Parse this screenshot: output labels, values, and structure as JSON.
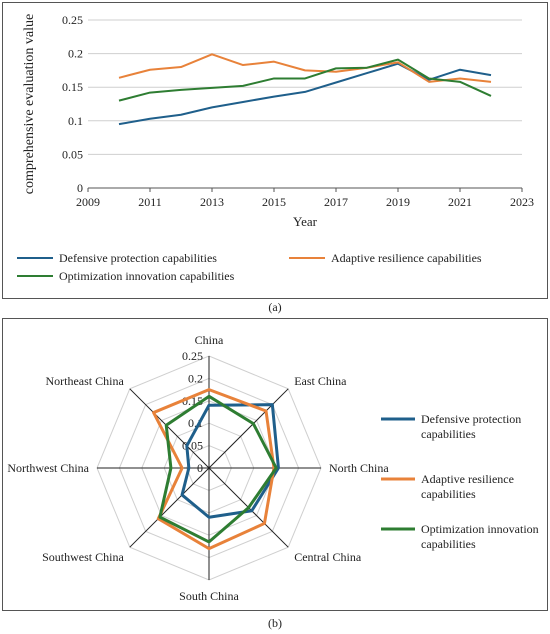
{
  "colors": {
    "defensive": "#1f5f8b",
    "adaptive": "#e8823a",
    "optimization": "#2e7d32",
    "grid": "#cfcfcf",
    "axis": "#555555"
  },
  "caption_a": "(a)",
  "caption_b": "(b)",
  "chart_data": [
    {
      "type": "line",
      "title": "",
      "xlabel": "Year",
      "ylabel": "comprehensive evaluation value",
      "xlim": [
        2009,
        2023
      ],
      "ylim": [
        0,
        0.25
      ],
      "xticks": [
        2009,
        2011,
        2013,
        2015,
        2017,
        2019,
        2021,
        2023
      ],
      "yticks": [
        0,
        0.05,
        0.1,
        0.15,
        0.2,
        0.25
      ],
      "ytick_labels": [
        "0",
        "0.05",
        "0.1",
        "0.15",
        "0.2",
        "0.25"
      ],
      "grid": "horizontal",
      "legend": "bottom",
      "x": [
        2010,
        2011,
        2012,
        2013,
        2014,
        2015,
        2016,
        2017,
        2018,
        2019,
        2020,
        2021,
        2022
      ],
      "series": [
        {
          "name": "Defensive protection capabilities",
          "color_key": "defensive",
          "values": [
            0.095,
            0.103,
            0.109,
            0.12,
            0.128,
            0.136,
            0.143,
            0.157,
            0.171,
            0.185,
            0.161,
            0.176,
            0.168
          ]
        },
        {
          "name": "Adaptive resilience capabilities",
          "color_key": "adaptive",
          "values": [
            0.164,
            0.176,
            0.18,
            0.199,
            0.183,
            0.188,
            0.175,
            0.173,
            0.179,
            0.187,
            0.158,
            0.163,
            0.158
          ]
        },
        {
          "name": "Optimization innovation capabilities",
          "color_key": "optimization",
          "values": [
            0.13,
            0.142,
            0.146,
            0.149,
            0.152,
            0.163,
            0.163,
            0.178,
            0.179,
            0.191,
            0.163,
            0.158,
            0.137
          ]
        }
      ]
    },
    {
      "type": "radar",
      "title": "",
      "categories": [
        "China",
        "East China",
        "North China",
        "Central China",
        "South China",
        "Southwest China",
        "Northwest China",
        "Northeast China"
      ],
      "rmax": 0.25,
      "rticks": [
        0,
        0.05,
        0.1,
        0.15,
        0.2,
        0.25
      ],
      "rtick_labels": [
        "0",
        "0.05",
        "0.1",
        "0.15",
        "0.2",
        "0.25"
      ],
      "grid": "on",
      "legend": "right",
      "series": [
        {
          "name": "Defensive protection capabilities",
          "color_key": "defensive",
          "values": [
            0.14,
            0.2,
            0.155,
            0.135,
            0.11,
            0.085,
            0.045,
            0.07
          ]
        },
        {
          "name": "Adaptive resilience capabilities",
          "color_key": "adaptive",
          "values": [
            0.175,
            0.18,
            0.145,
            0.175,
            0.18,
            0.16,
            0.06,
            0.175
          ]
        },
        {
          "name": "Optimization innovation capabilities",
          "color_key": "optimization",
          "values": [
            0.16,
            0.14,
            0.15,
            0.125,
            0.165,
            0.155,
            0.085,
            0.135
          ]
        }
      ]
    }
  ]
}
